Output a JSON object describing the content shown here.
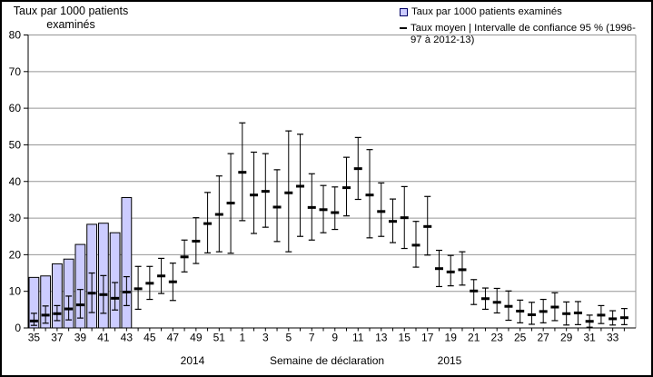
{
  "chart_data": {
    "type": "bar",
    "title": "Taux par 1000 patients examinés",
    "xlabel": "Semaine de déclaration",
    "ylabel": "Taux par 1000 patients examinés",
    "ylim": [
      0,
      80
    ],
    "ytick_interval": 10,
    "grid": true,
    "legend_position": "top-right",
    "legend": [
      {
        "swatch": "bar",
        "label": "Taux par 1000 patients examinés"
      },
      {
        "swatch": "dash",
        "label": "Taux moyen | Intervalle de confiance 95 % (1996-97 à 2012-13)"
      }
    ],
    "series": [
      {
        "name": "Taux par 1000 patients examinés",
        "type": "bar"
      },
      {
        "name": "Taux moyen | Intervalle de confiance 95 % (1996-97 à 2012-13)",
        "type": "errorbar"
      }
    ],
    "x_axis": {
      "tick_labels_every": 2,
      "year_groups": [
        {
          "label": "2014"
        },
        {
          "label": "2015"
        }
      ]
    },
    "colors": {
      "bar_fill": "#ccccff",
      "bar_border": "#000000",
      "errorbar": "#000000",
      "gridline": "#969696",
      "axis": "#000000",
      "text": "#000000",
      "background": "#ffffff"
    },
    "weeks": [
      {
        "year": 2014,
        "week": 35,
        "bar": 13.8,
        "mean": 1.9,
        "ci_low": 0.7,
        "ci_high": 4.0
      },
      {
        "year": 2014,
        "week": 36,
        "bar": 14.2,
        "mean": 3.5,
        "ci_low": 1.3,
        "ci_high": 6.0
      },
      {
        "year": 2014,
        "week": 37,
        "bar": 17.5,
        "mean": 3.9,
        "ci_low": 2.0,
        "ci_high": 6.1
      },
      {
        "year": 2014,
        "week": 38,
        "bar": 18.8,
        "mean": 5.2,
        "ci_low": 2.2,
        "ci_high": 8.7
      },
      {
        "year": 2014,
        "week": 39,
        "bar": 22.8,
        "mean": 6.3,
        "ci_low": 2.7,
        "ci_high": 10.5
      },
      {
        "year": 2014,
        "week": 40,
        "bar": 28.3,
        "mean": 9.5,
        "ci_low": 4.2,
        "ci_high": 15.0
      },
      {
        "year": 2014,
        "week": 41,
        "bar": 28.6,
        "mean": 9.1,
        "ci_low": 4.0,
        "ci_high": 14.3
      },
      {
        "year": 2014,
        "week": 42,
        "bar": 26.0,
        "mean": 8.1,
        "ci_low": 4.9,
        "ci_high": 12.4
      },
      {
        "year": 2014,
        "week": 43,
        "bar": 35.6,
        "mean": 9.8,
        "ci_low": 6.1,
        "ci_high": 14.0
      },
      {
        "year": 2014,
        "week": 44,
        "bar": null,
        "mean": 10.7,
        "ci_low": 5.1,
        "ci_high": 16.8
      },
      {
        "year": 2014,
        "week": 45,
        "bar": null,
        "mean": 12.2,
        "ci_low": 7.8,
        "ci_high": 16.8
      },
      {
        "year": 2014,
        "week": 46,
        "bar": null,
        "mean": 14.2,
        "ci_low": 9.4,
        "ci_high": 19.0
      },
      {
        "year": 2014,
        "week": 47,
        "bar": null,
        "mean": 12.6,
        "ci_low": 7.5,
        "ci_high": 17.7
      },
      {
        "year": 2014,
        "week": 48,
        "bar": null,
        "mean": 19.4,
        "ci_low": 15.3,
        "ci_high": 24.0
      },
      {
        "year": 2014,
        "week": 49,
        "bar": null,
        "mean": 23.7,
        "ci_low": 17.6,
        "ci_high": 30.1
      },
      {
        "year": 2014,
        "week": 50,
        "bar": null,
        "mean": 28.5,
        "ci_low": 20.5,
        "ci_high": 37.0
      },
      {
        "year": 2014,
        "week": 51,
        "bar": null,
        "mean": 31.0,
        "ci_low": 20.8,
        "ci_high": 41.5
      },
      {
        "year": 2014,
        "week": 52,
        "bar": null,
        "mean": 34.1,
        "ci_low": 20.4,
        "ci_high": 47.6
      },
      {
        "year": 2015,
        "week": 1,
        "bar": null,
        "mean": 42.5,
        "ci_low": 29.3,
        "ci_high": 56.0
      },
      {
        "year": 2015,
        "week": 2,
        "bar": null,
        "mean": 36.3,
        "ci_low": 25.8,
        "ci_high": 48.0
      },
      {
        "year": 2015,
        "week": 3,
        "bar": null,
        "mean": 37.3,
        "ci_low": 27.5,
        "ci_high": 47.6
      },
      {
        "year": 2015,
        "week": 4,
        "bar": null,
        "mean": 33.0,
        "ci_low": 23.6,
        "ci_high": 43.2
      },
      {
        "year": 2015,
        "week": 5,
        "bar": null,
        "mean": 36.9,
        "ci_low": 20.8,
        "ci_high": 53.8
      },
      {
        "year": 2015,
        "week": 6,
        "bar": null,
        "mean": 38.7,
        "ci_low": 25.0,
        "ci_high": 52.9
      },
      {
        "year": 2015,
        "week": 7,
        "bar": null,
        "mean": 32.9,
        "ci_low": 24.0,
        "ci_high": 42.1
      },
      {
        "year": 2015,
        "week": 8,
        "bar": null,
        "mean": 32.3,
        "ci_low": 26.0,
        "ci_high": 38.9
      },
      {
        "year": 2015,
        "week": 9,
        "bar": null,
        "mean": 31.5,
        "ci_low": 26.9,
        "ci_high": 38.5
      },
      {
        "year": 2015,
        "week": 10,
        "bar": null,
        "mean": 38.3,
        "ci_low": 30.6,
        "ci_high": 46.6
      },
      {
        "year": 2015,
        "week": 11,
        "bar": null,
        "mean": 43.5,
        "ci_low": 35.1,
        "ci_high": 52.0
      },
      {
        "year": 2015,
        "week": 12,
        "bar": null,
        "mean": 36.3,
        "ci_low": 24.6,
        "ci_high": 48.7
      },
      {
        "year": 2015,
        "week": 13,
        "bar": null,
        "mean": 31.8,
        "ci_low": 25.0,
        "ci_high": 39.6
      },
      {
        "year": 2015,
        "week": 14,
        "bar": null,
        "mean": 29.1,
        "ci_low": 23.3,
        "ci_high": 35.2
      },
      {
        "year": 2015,
        "week": 15,
        "bar": null,
        "mean": 30.1,
        "ci_low": 21.7,
        "ci_high": 38.6
      },
      {
        "year": 2015,
        "week": 16,
        "bar": null,
        "mean": 22.6,
        "ci_low": 16.6,
        "ci_high": 29.1
      },
      {
        "year": 2015,
        "week": 17,
        "bar": null,
        "mean": 27.7,
        "ci_low": 19.9,
        "ci_high": 35.9
      },
      {
        "year": 2015,
        "week": 18,
        "bar": null,
        "mean": 16.2,
        "ci_low": 11.3,
        "ci_high": 21.2
      },
      {
        "year": 2015,
        "week": 19,
        "bar": null,
        "mean": 15.3,
        "ci_low": 11.5,
        "ci_high": 19.8
      },
      {
        "year": 2015,
        "week": 20,
        "bar": null,
        "mean": 15.9,
        "ci_low": 11.7,
        "ci_high": 20.8
      },
      {
        "year": 2015,
        "week": 21,
        "bar": null,
        "mean": 10.1,
        "ci_low": 6.4,
        "ci_high": 13.2
      },
      {
        "year": 2015,
        "week": 22,
        "bar": null,
        "mean": 8.0,
        "ci_low": 5.1,
        "ci_high": 10.9
      },
      {
        "year": 2015,
        "week": 23,
        "bar": null,
        "mean": 7.0,
        "ci_low": 4.1,
        "ci_high": 10.8
      },
      {
        "year": 2015,
        "week": 24,
        "bar": null,
        "mean": 5.9,
        "ci_low": 2.1,
        "ci_high": 10.1
      },
      {
        "year": 2015,
        "week": 25,
        "bar": null,
        "mean": 4.6,
        "ci_low": 1.4,
        "ci_high": 7.6
      },
      {
        "year": 2015,
        "week": 26,
        "bar": null,
        "mean": 3.6,
        "ci_low": 1.0,
        "ci_high": 7.0
      },
      {
        "year": 2015,
        "week": 27,
        "bar": null,
        "mean": 4.5,
        "ci_low": 1.4,
        "ci_high": 7.8
      },
      {
        "year": 2015,
        "week": 28,
        "bar": null,
        "mean": 5.7,
        "ci_low": 2.0,
        "ci_high": 9.6
      },
      {
        "year": 2015,
        "week": 29,
        "bar": null,
        "mean": 3.9,
        "ci_low": 0.8,
        "ci_high": 7.1
      },
      {
        "year": 2015,
        "week": 30,
        "bar": null,
        "mean": 4.1,
        "ci_low": 0.9,
        "ci_high": 7.2
      },
      {
        "year": 2015,
        "week": 31,
        "bar": null,
        "mean": 1.8,
        "ci_low": 0.2,
        "ci_high": 3.5
      },
      {
        "year": 2015,
        "week": 32,
        "bar": null,
        "mean": 3.5,
        "ci_low": 1.2,
        "ci_high": 6.1
      },
      {
        "year": 2015,
        "week": 33,
        "bar": null,
        "mean": 2.5,
        "ci_low": 0.8,
        "ci_high": 4.7
      },
      {
        "year": 2015,
        "week": 34,
        "bar": null,
        "mean": 2.8,
        "ci_low": 0.9,
        "ci_high": 5.3
      }
    ]
  }
}
